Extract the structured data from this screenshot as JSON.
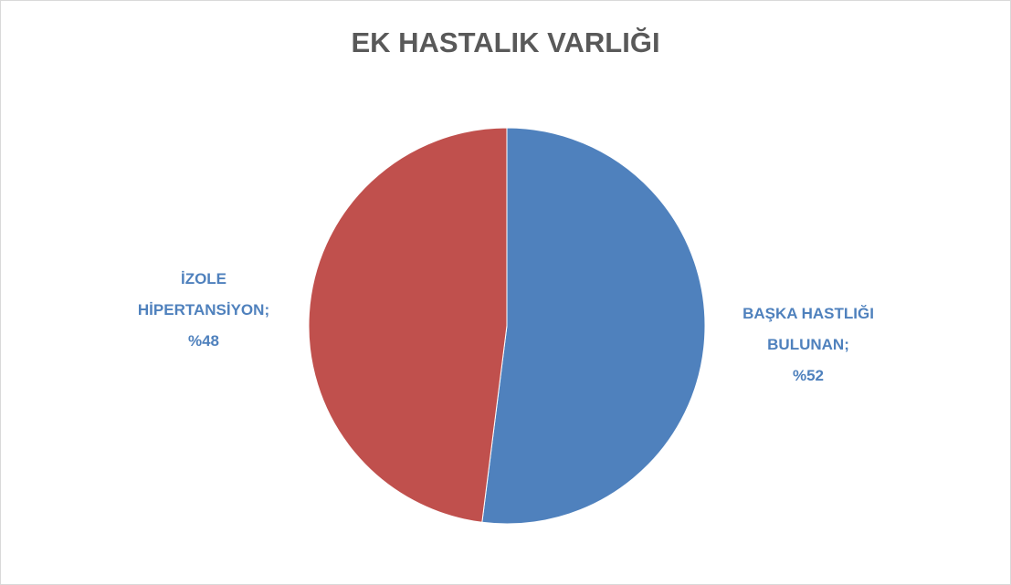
{
  "chart_data": {
    "type": "pie",
    "title": "EK HASTALIK VARLIĞI",
    "categories": [
      "BAŞKA HASTLIĞI BULUNAN",
      "İZOLE HİPERTANSİYON"
    ],
    "values": [
      52,
      48
    ],
    "value_labels": [
      "%52",
      "%48"
    ],
    "label_separator": ";",
    "colors": [
      "#4f81bd",
      "#c0504d"
    ],
    "label_color": "#4f81bd",
    "start_angle": 0,
    "direction": "clockwise"
  }
}
